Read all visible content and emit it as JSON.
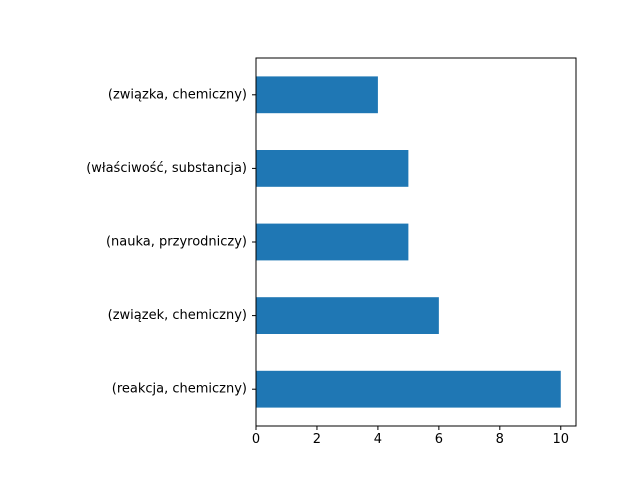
{
  "chart_data": {
    "type": "bar",
    "orientation": "horizontal",
    "categories": [
      "(reakcja, chemiczny)",
      "(związek, chemiczny)",
      "(nauka, przyrodniczy)",
      "(właściwość, substancja)",
      "(związka, chemiczny)"
    ],
    "values": [
      10,
      6,
      5,
      5,
      4
    ],
    "title": "",
    "xlabel": "",
    "ylabel": "",
    "xlim": [
      0,
      10.5
    ],
    "xticks": [
      0,
      2,
      4,
      6,
      8,
      10
    ],
    "bar_color": "#1f77b4",
    "grid": false,
    "legend": false
  }
}
